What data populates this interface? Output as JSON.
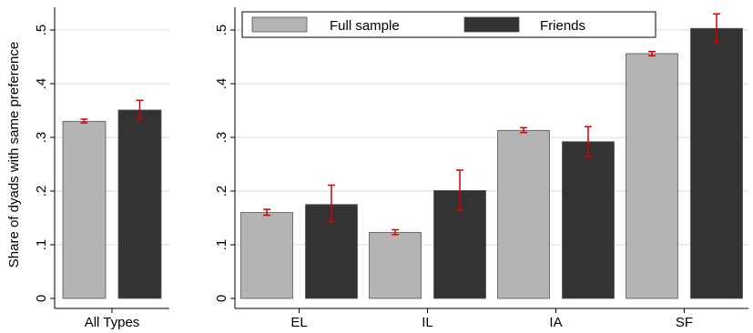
{
  "chart_data": {
    "type": "bar",
    "ylabel": "Share of dyads with same preference",
    "ylim": [
      0,
      0.5
    ],
    "yticks": [
      0,
      0.1,
      0.2,
      0.3,
      0.4,
      0.5
    ],
    "ytick_labels": [
      "0",
      ".1",
      ".2",
      ".3",
      ".4",
      ".5"
    ],
    "grid": true,
    "legend_position": "top",
    "series": [
      {
        "name": "Full sample",
        "color": "#b4b4b4"
      },
      {
        "name": "Friends",
        "color": "#333333"
      }
    ],
    "error_bar_color": "#d40000",
    "panels": [
      {
        "categories": [
          "All Types"
        ],
        "series_values": [
          {
            "values": [
              0.33
            ],
            "err_low": [
              0.327
            ],
            "err_high": [
              0.334
            ]
          },
          {
            "values": [
              0.351
            ],
            "err_low": [
              0.334
            ],
            "err_high": [
              0.369
            ]
          }
        ]
      },
      {
        "categories": [
          "EL",
          "IL",
          "IA",
          "SF"
        ],
        "series_values": [
          {
            "values": [
              0.16,
              0.123,
              0.313,
              0.456
            ],
            "err_low": [
              0.155,
              0.119,
              0.309,
              0.452
            ],
            "err_high": [
              0.166,
              0.128,
              0.318,
              0.46
            ]
          },
          {
            "values": [
              0.175,
              0.201,
              0.292,
              0.503
            ],
            "err_low": [
              0.143,
              0.164,
              0.264,
              0.477
            ],
            "err_high": [
              0.211,
              0.239,
              0.32,
              0.53
            ]
          }
        ]
      }
    ]
  }
}
